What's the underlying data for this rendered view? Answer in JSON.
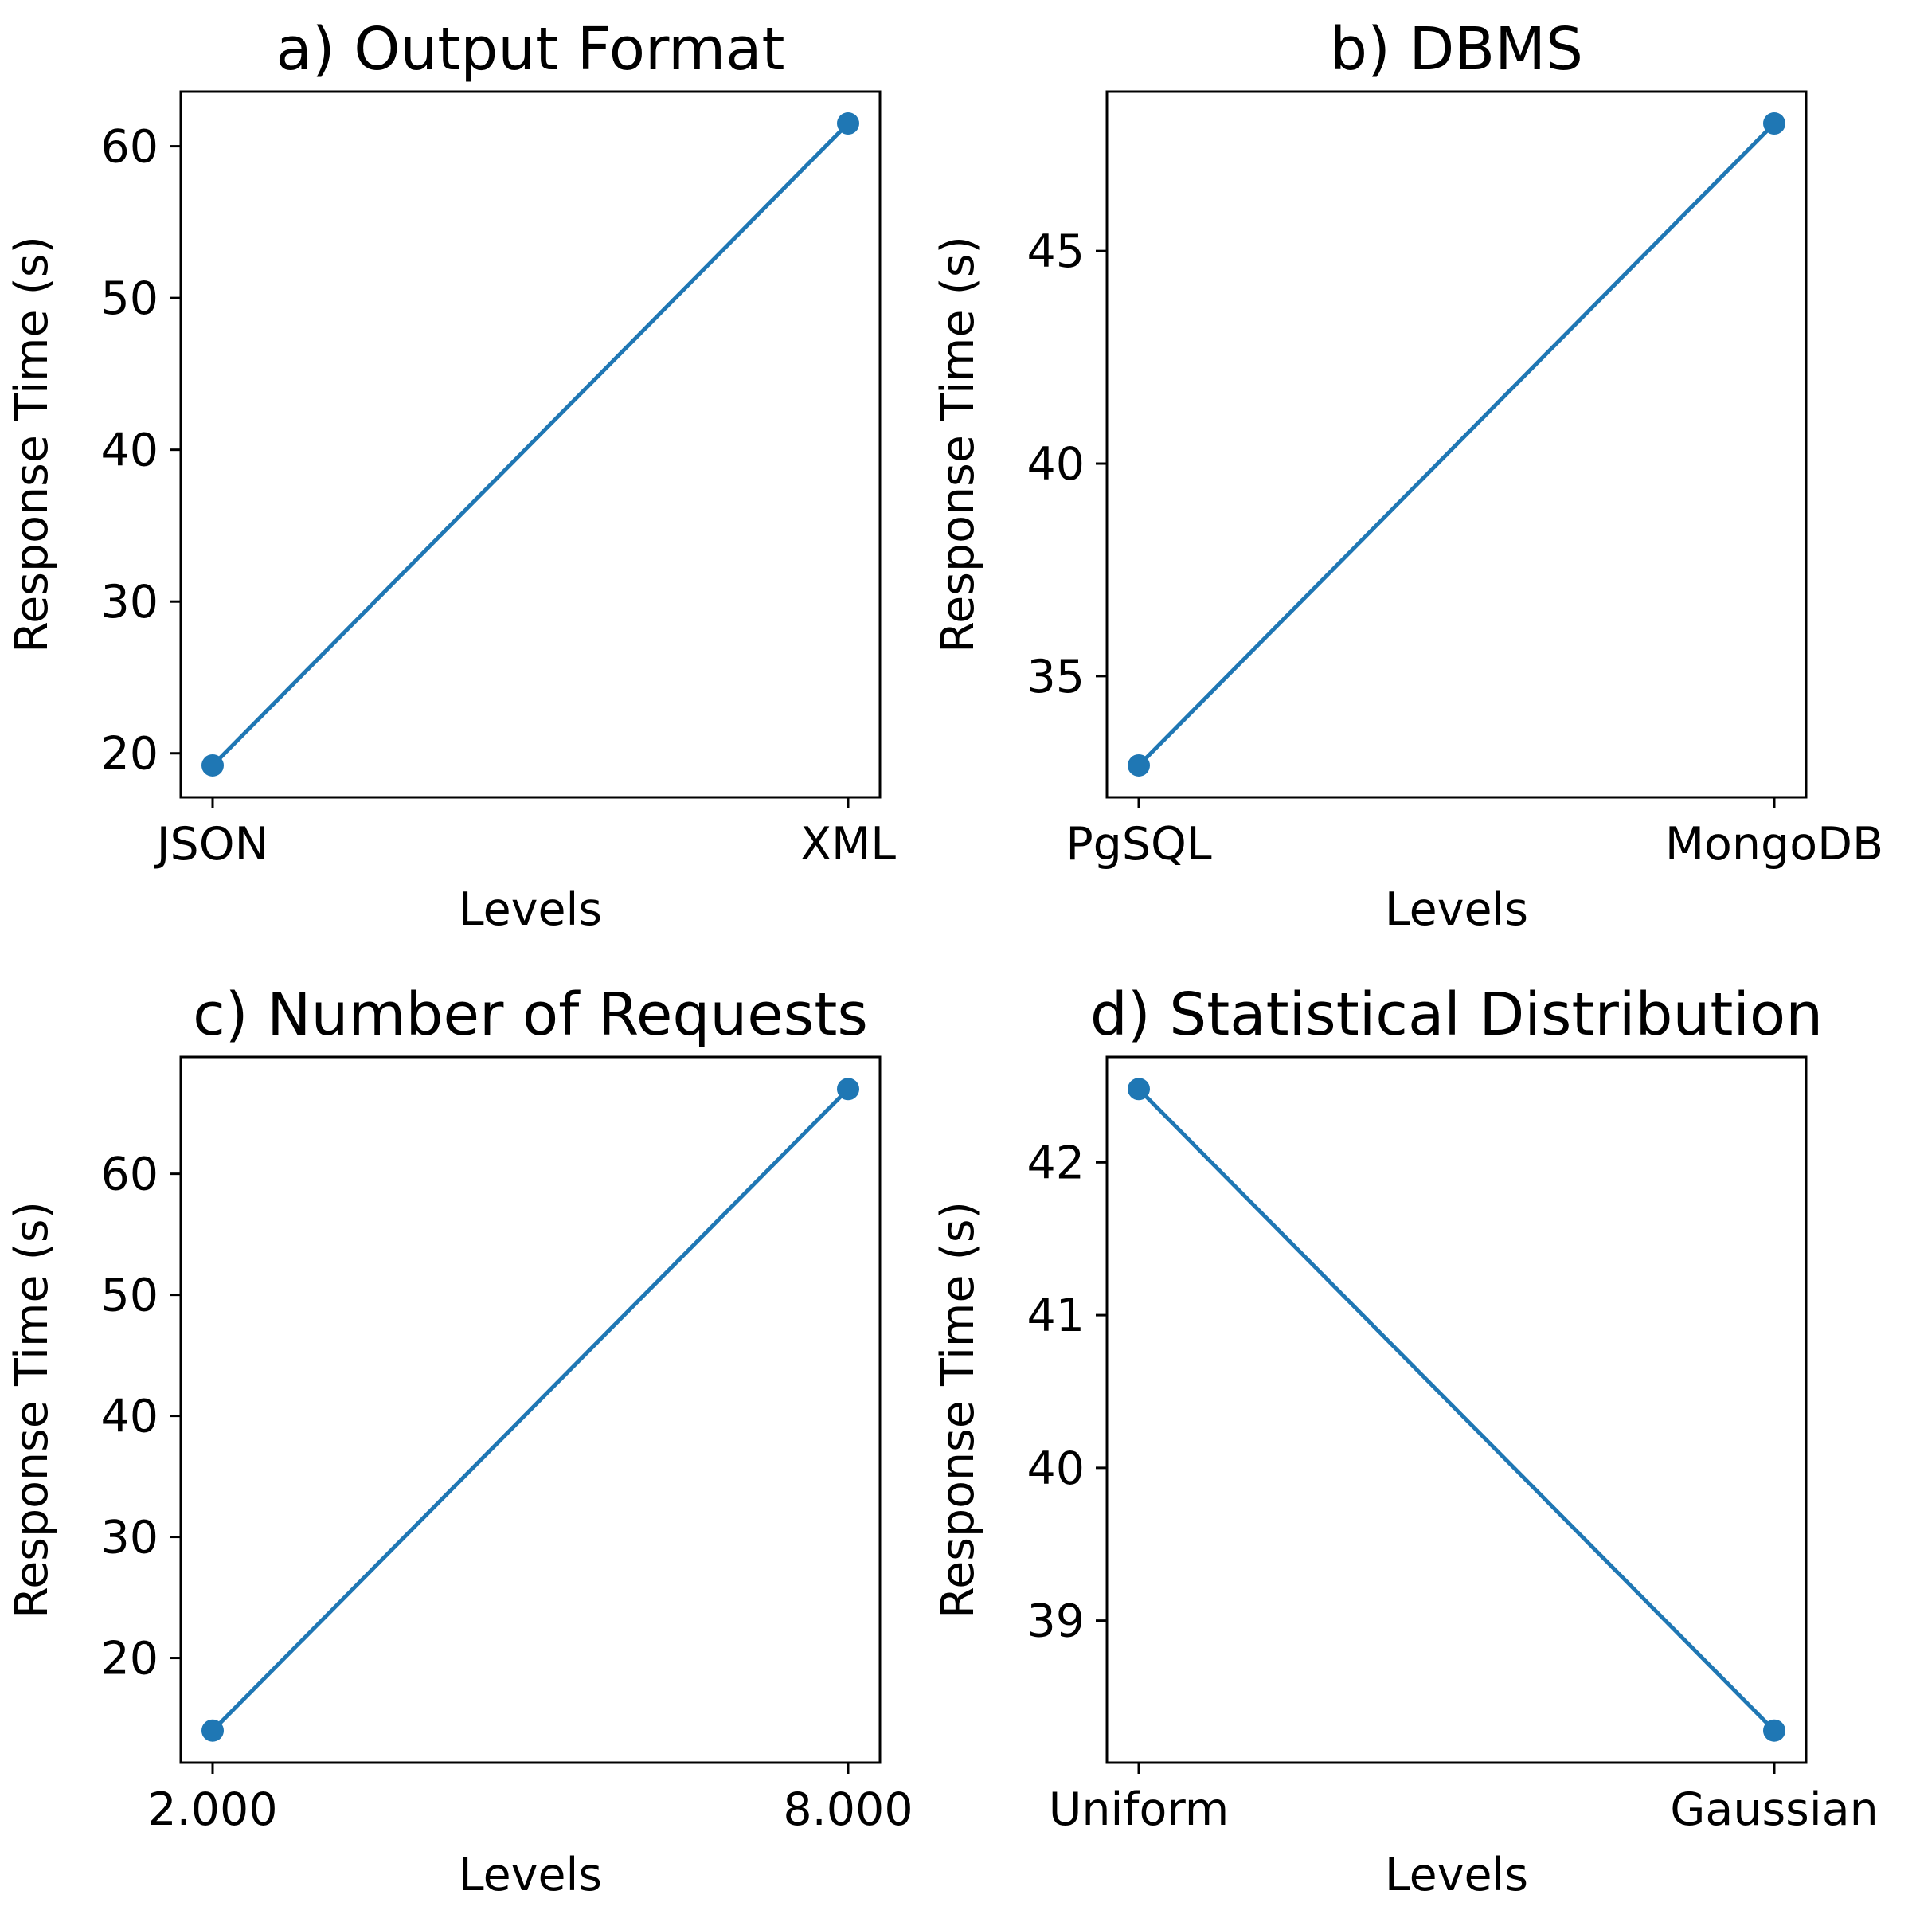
{
  "chart_data": [
    {
      "type": "line",
      "title": "a) Output Format",
      "xlabel": "Levels",
      "ylabel": "Response Time (s)",
      "categories": [
        "JSON",
        "XML"
      ],
      "series": [
        {
          "values": [
            19.2,
            61.5
          ],
          "color": "#1f77b4"
        }
      ],
      "ylim": [
        17.1,
        63.6
      ],
      "yticks": [
        20,
        30,
        40,
        50,
        60
      ]
    },
    {
      "type": "line",
      "title": "b) DBMS",
      "xlabel": "Levels",
      "ylabel": "Response Time (s)",
      "categories": [
        "PgSQL",
        "MongoDB"
      ],
      "series": [
        {
          "values": [
            32.9,
            48.0
          ],
          "color": "#1f77b4"
        }
      ],
      "ylim": [
        32.15,
        48.75
      ],
      "yticks": [
        35,
        40,
        45
      ]
    },
    {
      "type": "line",
      "title": "c) Number of Requests",
      "xlabel": "Levels",
      "ylabel": "Response Time (s)",
      "categories": [
        "2.000",
        "8.000"
      ],
      "series": [
        {
          "values": [
            14.0,
            67.0
          ],
          "color": "#1f77b4"
        }
      ],
      "ylim": [
        11.35,
        69.65
      ],
      "yticks": [
        20,
        30,
        40,
        50,
        60
      ]
    },
    {
      "type": "line",
      "title": "d) Statistical Distribution",
      "xlabel": "Levels",
      "ylabel": "Response Time (s)",
      "categories": [
        "Uniform",
        "Gaussian"
      ],
      "series": [
        {
          "values": [
            42.48,
            38.28
          ],
          "color": "#1f77b4"
        }
      ],
      "ylim": [
        38.07,
        42.69
      ],
      "yticks": [
        39,
        40,
        41,
        42
      ]
    }
  ]
}
